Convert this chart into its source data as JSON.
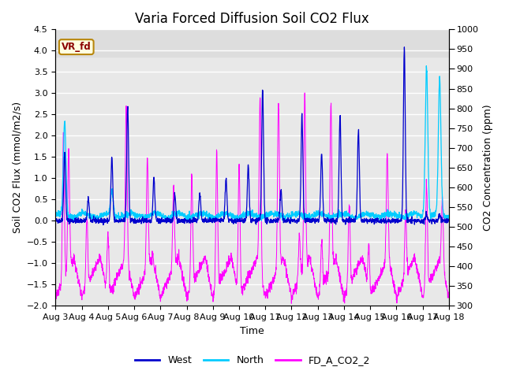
{
  "title": "Varia Forced Diffusion Soil CO2 Flux",
  "ylabel_left": "Soil CO2 Flux (mmol/m2/s)",
  "ylabel_right": "CO2 Concentration (ppm)",
  "xlabel": "Time",
  "ylim_left": [
    -2.0,
    4.5
  ],
  "ylim_right": [
    300,
    1000
  ],
  "xlim_days": [
    0,
    15
  ],
  "xtick_labels": [
    "Aug 3",
    "Aug 4",
    "Aug 5",
    "Aug 6",
    "Aug 7",
    "Aug 8",
    "Aug 9",
    "Aug 10",
    "Aug 11",
    "Aug 12",
    "Aug 13",
    "Aug 14",
    "Aug 15",
    "Aug 16",
    "Aug 17",
    "Aug 18"
  ],
  "xtick_positions": [
    0,
    1,
    2,
    3,
    4,
    5,
    6,
    7,
    8,
    9,
    10,
    11,
    12,
    13,
    14,
    15
  ],
  "color_west": "#0000CD",
  "color_north": "#00CCFF",
  "color_co2": "#FF00FF",
  "legend_labels": [
    "West",
    "North",
    "FD_A_CO2_2"
  ],
  "vr_fd_label": "VR_fd",
  "gray_shade_ymin": 3.85,
  "gray_shade_ymax": 4.5,
  "gray_shade_color": "#DDDDDD",
  "background_color": "#E8E8E8",
  "grid_color": "#FFFFFF",
  "title_fontsize": 12,
  "label_fontsize": 9,
  "tick_fontsize": 8
}
